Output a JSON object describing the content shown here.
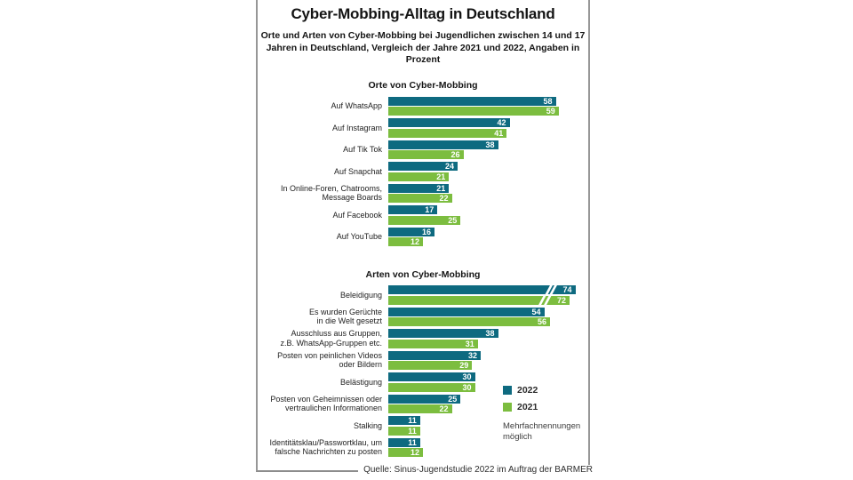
{
  "header": {
    "title": "Cyber-Mobbing-Alltag in Deutschland",
    "subtitle": "Orte und Arten von Cyber-Mobbing bei Jugendlichen zwischen 14 und 17 Jahren in Deutschland, Vergleich der Jahre 2021 und 2022, Angaben in Prozent"
  },
  "colors": {
    "series_2022": "#0e6a80",
    "series_2021": "#7cbd3f",
    "frame_border": "#979797"
  },
  "legend": {
    "items": [
      {
        "label": "2022",
        "color": "#0e6a80"
      },
      {
        "label": "2021",
        "color": "#7cbd3f"
      }
    ],
    "note_lines": [
      "Mehrfachnennungen",
      "möglich"
    ]
  },
  "source": "Quelle: Sinus-Jugendstudie 2022 im Auftrag der BARMER",
  "chart_data": [
    {
      "type": "bar",
      "orientation": "horizontal",
      "title": "Orte von Cyber-Mobbing",
      "unit": "percent",
      "xlim": [
        0,
        69
      ],
      "grid": false,
      "value_labels": "inside-end",
      "categories": [
        "Auf WhatsApp",
        "Auf Instagram",
        "Auf Tik Tok",
        "Auf Snapchat",
        "In Online-Foren, Chatrooms, Message Boards",
        "Auf Facebook",
        "Auf YouTube"
      ],
      "label_lines": [
        [
          "Auf WhatsApp"
        ],
        [
          "Auf Instagram"
        ],
        [
          "Auf Tik Tok"
        ],
        [
          "Auf Snapchat"
        ],
        [
          "In Online-Foren, Chatrooms,",
          "Message Boards"
        ],
        [
          "Auf Facebook"
        ],
        [
          "Auf YouTube"
        ]
      ],
      "series": [
        {
          "name": "2022",
          "color": "#0e6a80",
          "values": [
            58,
            42,
            38,
            24,
            21,
            17,
            16
          ]
        },
        {
          "name": "2021",
          "color": "#7cbd3f",
          "values": [
            59,
            41,
            26,
            21,
            22,
            25,
            12
          ]
        }
      ],
      "broken_rows": []
    },
    {
      "type": "bar",
      "orientation": "horizontal",
      "title": "Arten von Cyber-Mobbing",
      "unit": "percent",
      "xlim": [
        0,
        69
      ],
      "grid": false,
      "value_labels": "inside-end",
      "categories": [
        "Beleidigung",
        "Es wurden Gerüchte in die Welt gesetzt",
        "Ausschluss aus Gruppen, z.B. WhatsApp-Gruppen etc.",
        "Posten von peinlichen Videos oder Bildern",
        "Belästigung",
        "Posten von Geheimnissen oder vertraulichen Informationen",
        "Stalking",
        "Identitätsklau/Passwortklau, um falsche Nachrichten zu posten"
      ],
      "label_lines": [
        [
          "Beleidigung"
        ],
        [
          "Es wurden Gerüchte",
          "in die Welt gesetzt"
        ],
        [
          "Ausschluss aus Gruppen,",
          "z.B. WhatsApp-Gruppen etc."
        ],
        [
          "Posten von peinlichen Videos",
          "oder Bildern"
        ],
        [
          "Belästigung"
        ],
        [
          "Posten von Geheimnissen oder",
          "vertraulichen Informationen"
        ],
        [
          "Stalking"
        ],
        [
          "Identitätsklau/Passwortklau, um",
          "falsche Nachrichten zu posten"
        ]
      ],
      "series": [
        {
          "name": "2022",
          "color": "#0e6a80",
          "values": [
            74,
            54,
            38,
            32,
            30,
            25,
            11,
            11
          ]
        },
        {
          "name": "2021",
          "color": "#7cbd3f",
          "values": [
            72,
            56,
            31,
            29,
            30,
            22,
            11,
            12
          ]
        }
      ],
      "broken_rows": [
        0
      ]
    }
  ]
}
